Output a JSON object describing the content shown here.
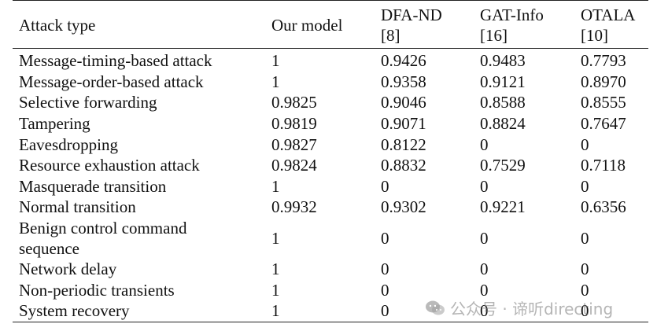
{
  "table": {
    "headers": [
      {
        "lines": [
          "Attack type"
        ]
      },
      {
        "lines": [
          "Our model"
        ]
      },
      {
        "lines": [
          "DFA-ND",
          "[8]"
        ]
      },
      {
        "lines": [
          "GAT-Info",
          "[16]"
        ]
      },
      {
        "lines": [
          "OTALA",
          "[10]"
        ]
      }
    ],
    "rows": [
      {
        "attack": [
          "Message-timing-based attack"
        ],
        "our_model": "1",
        "dfa_nd": "0.9426",
        "gat_info": "0.9483",
        "otala": "0.7793"
      },
      {
        "attack": [
          "Message-order-based attack"
        ],
        "our_model": "1",
        "dfa_nd": "0.9358",
        "gat_info": "0.9121",
        "otala": "0.8970"
      },
      {
        "attack": [
          "Selective forwarding"
        ],
        "our_model": "0.9825",
        "dfa_nd": "0.9046",
        "gat_info": "0.8588",
        "otala": "0.8555"
      },
      {
        "attack": [
          "Tampering"
        ],
        "our_model": "0.9819",
        "dfa_nd": "0.9071",
        "gat_info": "0.8824",
        "otala": "0.7647"
      },
      {
        "attack": [
          "Eavesdropping"
        ],
        "our_model": "0.9827",
        "dfa_nd": "0.8122",
        "gat_info": "0",
        "otala": "0"
      },
      {
        "attack": [
          "Resource exhaustion attack"
        ],
        "our_model": "0.9824",
        "dfa_nd": "0.8832",
        "gat_info": "0.7529",
        "otala": "0.7118"
      },
      {
        "attack": [
          "Masquerade transition"
        ],
        "our_model": "1",
        "dfa_nd": "0",
        "gat_info": "0",
        "otala": "0"
      },
      {
        "attack": [
          "Normal transition"
        ],
        "our_model": "0.9932",
        "dfa_nd": "0.9302",
        "gat_info": "0.9221",
        "otala": "0.6356"
      },
      {
        "attack": [
          "Benign control command",
          "sequence"
        ],
        "our_model": "1",
        "dfa_nd": "0",
        "gat_info": "0",
        "otala": "0"
      },
      {
        "attack": [
          "Network delay"
        ],
        "our_model": "1",
        "dfa_nd": "0",
        "gat_info": "0",
        "otala": "0"
      },
      {
        "attack": [
          "Non-periodic transients"
        ],
        "our_model": "1",
        "dfa_nd": "0",
        "gat_info": "0",
        "otala": "0"
      },
      {
        "attack": [
          "System recovery"
        ],
        "our_model": "1",
        "dfa_nd": "0",
        "gat_info": "0",
        "otala": "0"
      }
    ]
  },
  "watermark": {
    "text": "公众号 · 谛听directing",
    "icon": "wechat-icon"
  }
}
